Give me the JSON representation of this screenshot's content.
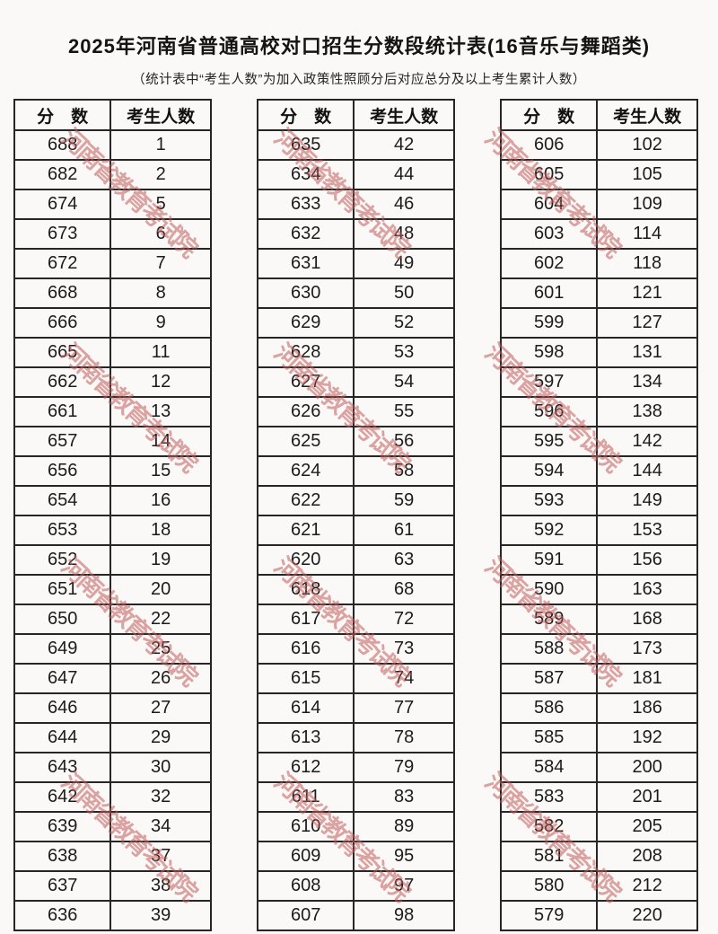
{
  "title": "2025年河南省普通高校对口招生分数段统计表(16音乐与舞蹈类)",
  "subtitle": "（统计表中“考生人数”为加入政策性照顾分后对应总分及以上考生累计人数）",
  "watermark": {
    "text": "河南省教育考试院",
    "color": "#c05c5c"
  },
  "columns": {
    "score": "分　数",
    "count": "考生人数"
  },
  "tables": [
    {
      "rows": [
        [
          688,
          1
        ],
        [
          682,
          2
        ],
        [
          674,
          5
        ],
        [
          673,
          6
        ],
        [
          672,
          7
        ],
        [
          668,
          8
        ],
        [
          666,
          9
        ],
        [
          665,
          11
        ],
        [
          662,
          12
        ],
        [
          661,
          13
        ],
        [
          657,
          14
        ],
        [
          656,
          15
        ],
        [
          654,
          16
        ],
        [
          653,
          18
        ],
        [
          652,
          19
        ],
        [
          651,
          20
        ],
        [
          650,
          22
        ],
        [
          649,
          25
        ],
        [
          647,
          26
        ],
        [
          646,
          27
        ],
        [
          644,
          29
        ],
        [
          643,
          30
        ],
        [
          642,
          32
        ],
        [
          639,
          34
        ],
        [
          638,
          37
        ],
        [
          637,
          38
        ],
        [
          636,
          39
        ]
      ]
    },
    {
      "rows": [
        [
          635,
          42
        ],
        [
          634,
          44
        ],
        [
          633,
          46
        ],
        [
          632,
          48
        ],
        [
          631,
          49
        ],
        [
          630,
          50
        ],
        [
          629,
          52
        ],
        [
          628,
          53
        ],
        [
          627,
          54
        ],
        [
          626,
          55
        ],
        [
          625,
          56
        ],
        [
          624,
          58
        ],
        [
          622,
          59
        ],
        [
          621,
          61
        ],
        [
          620,
          63
        ],
        [
          618,
          68
        ],
        [
          617,
          72
        ],
        [
          616,
          73
        ],
        [
          615,
          74
        ],
        [
          614,
          77
        ],
        [
          613,
          78
        ],
        [
          612,
          79
        ],
        [
          611,
          83
        ],
        [
          610,
          89
        ],
        [
          609,
          95
        ],
        [
          608,
          97
        ],
        [
          607,
          98
        ]
      ]
    },
    {
      "rows": [
        [
          606,
          102
        ],
        [
          605,
          105
        ],
        [
          604,
          109
        ],
        [
          603,
          114
        ],
        [
          602,
          118
        ],
        [
          601,
          121
        ],
        [
          599,
          127
        ],
        [
          598,
          131
        ],
        [
          597,
          134
        ],
        [
          596,
          138
        ],
        [
          595,
          142
        ],
        [
          594,
          144
        ],
        [
          593,
          149
        ],
        [
          592,
          153
        ],
        [
          591,
          156
        ],
        [
          590,
          163
        ],
        [
          589,
          168
        ],
        [
          588,
          173
        ],
        [
          587,
          181
        ],
        [
          586,
          186
        ],
        [
          585,
          192
        ],
        [
          584,
          200
        ],
        [
          583,
          201
        ],
        [
          582,
          205
        ],
        [
          581,
          208
        ],
        [
          580,
          212
        ],
        [
          579,
          220
        ]
      ]
    }
  ]
}
